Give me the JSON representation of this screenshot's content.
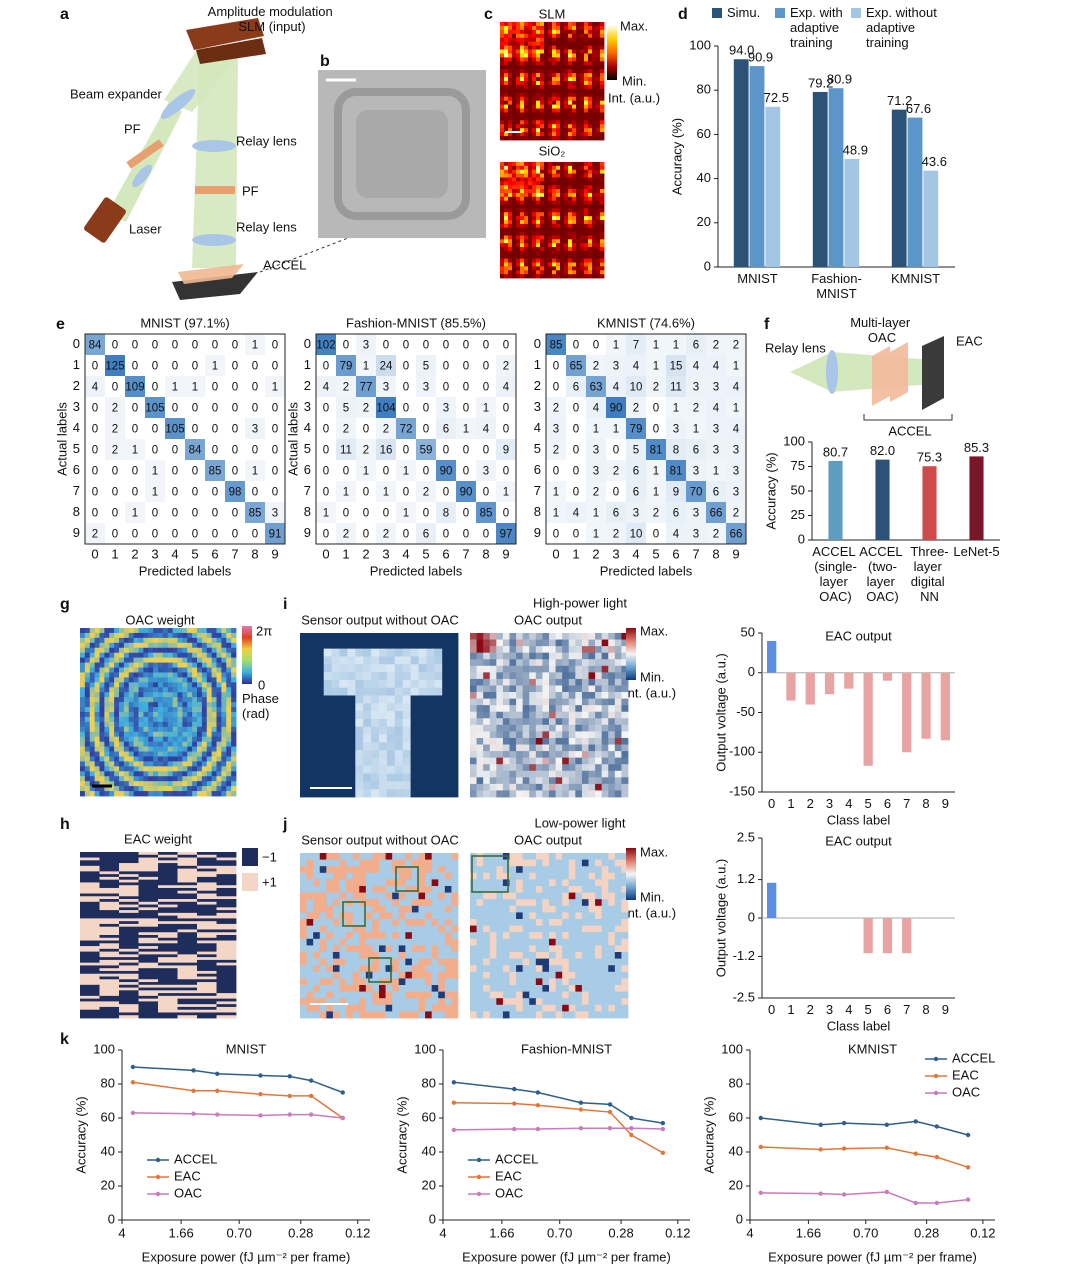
{
  "panel_labels": [
    "a",
    "b",
    "c",
    "d",
    "e",
    "f",
    "g",
    "h",
    "i",
    "j",
    "k"
  ],
  "panel_a": {
    "slm": "Amplitude modulation SLM (input)",
    "beam_expander": "Beam expander",
    "pf_1": "PF",
    "relay_lens_1": "Relay lens",
    "pf_2": "PF",
    "laser": "Laser",
    "relay_lens_2": "Relay lens",
    "accel": "ACCEL"
  },
  "panel_c": {
    "top": "SLM",
    "bottom": "SiO₂",
    "max": "Max.",
    "min": "Min.",
    "unit": "Int. (a.u.)"
  },
  "panel_f": {
    "relay_lens": "Relay lens",
    "oac": "Multi-layer OAC",
    "eac": "EAC",
    "accel": "ACCEL"
  },
  "panel_g": {
    "title": "OAC weight",
    "max": "2π",
    "min": "0",
    "unit": "Phase (rad)"
  },
  "panel_h": {
    "title": "EAC weight",
    "neg": "−1",
    "pos": "+1"
  },
  "panel_i": {
    "title": "High-power light",
    "sensor": "Sensor output without OAC",
    "oac": "OAC output",
    "max": "Max.",
    "min": "Min.",
    "unit": "Int. (a.u.)"
  },
  "panel_j": {
    "title": "Low-power light",
    "sensor": "Sensor output without OAC",
    "oac": "OAC output",
    "max": "Max.",
    "min": "Min.",
    "unit": "Int. (a.u.)"
  },
  "chart_data": [
    {
      "type": "bar",
      "categories": [
        "MNIST",
        "Fashion-MNIST",
        "KMNIST"
      ],
      "series": [
        {
          "name": "Simu.",
          "color": "#2c5377",
          "values": [
            94.0,
            79.2,
            71.2
          ],
          "value_labels": [
            "94.0",
            "79.2",
            "71.2"
          ]
        },
        {
          "name": "Exp. with adaptive training",
          "color": "#5b95c9",
          "values": [
            90.9,
            80.9,
            67.6
          ],
          "value_labels": [
            "90.9",
            "80.9",
            "67.6"
          ]
        },
        {
          "name": "Exp. without adaptive training",
          "color": "#a3c6e4",
          "values": [
            72.5,
            48.9,
            43.6
          ],
          "value_labels": [
            "72.5",
            "48.9",
            "43.6"
          ]
        }
      ],
      "ylabel": "Accuracy (%)",
      "ylim": [
        0,
        100
      ],
      "yticks": [
        0,
        20,
        40,
        60,
        80,
        100
      ],
      "legend": "top"
    },
    {
      "type": "confusion_matrix",
      "title": "MNIST (97.1%)",
      "color": "#3f7fc1",
      "matrix": [
        [
          84,
          0,
          0,
          0,
          0,
          0,
          0,
          0,
          1,
          0
        ],
        [
          0,
          125,
          0,
          0,
          0,
          0,
          1,
          0,
          0,
          0
        ],
        [
          4,
          0,
          109,
          0,
          1,
          1,
          0,
          0,
          0,
          1
        ],
        [
          0,
          2,
          0,
          105,
          0,
          0,
          0,
          0,
          0,
          0
        ],
        [
          0,
          2,
          0,
          0,
          105,
          0,
          0,
          0,
          3,
          0
        ],
        [
          0,
          2,
          1,
          0,
          0,
          84,
          0,
          0,
          0,
          0
        ],
        [
          0,
          0,
          0,
          1,
          0,
          0,
          85,
          0,
          1,
          0
        ],
        [
          0,
          0,
          0,
          1,
          0,
          0,
          0,
          98,
          0,
          0
        ],
        [
          0,
          0,
          1,
          0,
          0,
          0,
          0,
          0,
          85,
          3
        ],
        [
          2,
          0,
          0,
          0,
          0,
          0,
          0,
          0,
          0,
          91
        ]
      ],
      "xticks": [
        0,
        1,
        2,
        3,
        4,
        5,
        6,
        7,
        8,
        9
      ],
      "yticks": [
        0,
        1,
        2,
        3,
        4,
        5,
        6,
        7,
        8,
        9
      ],
      "xlabel": "Predicted labels",
      "ylabel": "Actual labels"
    },
    {
      "type": "confusion_matrix",
      "title": "Fashion-MNIST (85.5%)",
      "color": "#3f7fc1",
      "matrix": [
        [
          102,
          0,
          3,
          0,
          0,
          0,
          0,
          0,
          0,
          0
        ],
        [
          0,
          79,
          1,
          24,
          0,
          5,
          0,
          0,
          0,
          2
        ],
        [
          4,
          2,
          77,
          3,
          0,
          3,
          0,
          0,
          0,
          4
        ],
        [
          0,
          5,
          2,
          104,
          0,
          0,
          3,
          0,
          1,
          0
        ],
        [
          0,
          2,
          0,
          2,
          72,
          0,
          6,
          1,
          4,
          0
        ],
        [
          0,
          11,
          2,
          16,
          0,
          59,
          0,
          0,
          0,
          9
        ],
        [
          0,
          0,
          1,
          0,
          1,
          0,
          90,
          0,
          3,
          0
        ],
        [
          0,
          1,
          0,
          1,
          0,
          2,
          0,
          90,
          0,
          1
        ],
        [
          1,
          0,
          0,
          0,
          1,
          0,
          8,
          0,
          85,
          0
        ],
        [
          0,
          2,
          0,
          2,
          0,
          6,
          0,
          0,
          0,
          97
        ]
      ],
      "xticks": [
        0,
        1,
        2,
        3,
        4,
        5,
        6,
        7,
        8,
        9
      ],
      "yticks": [
        0,
        1,
        2,
        3,
        4,
        5,
        6,
        7,
        8,
        9
      ],
      "xlabel": "Predicted labels",
      "ylabel": "Actual labels"
    },
    {
      "type": "confusion_matrix",
      "title": "KMNIST (74.6%)",
      "color": "#3f7fc1",
      "matrix": [
        [
          85,
          0,
          0,
          1,
          7,
          1,
          1,
          6,
          2,
          2
        ],
        [
          0,
          65,
          2,
          3,
          4,
          1,
          15,
          4,
          4,
          1
        ],
        [
          0,
          6,
          63,
          4,
          10,
          2,
          11,
          3,
          3,
          4
        ],
        [
          2,
          0,
          4,
          90,
          2,
          0,
          1,
          2,
          4,
          1
        ],
        [
          3,
          0,
          1,
          1,
          79,
          0,
          3,
          1,
          3,
          4
        ],
        [
          2,
          0,
          3,
          0,
          5,
          81,
          8,
          6,
          3,
          3
        ],
        [
          0,
          0,
          3,
          2,
          6,
          1,
          81,
          3,
          1,
          3
        ],
        [
          1,
          0,
          2,
          0,
          6,
          1,
          9,
          70,
          6,
          3
        ],
        [
          1,
          4,
          1,
          6,
          3,
          2,
          6,
          3,
          66,
          2
        ],
        [
          0,
          0,
          1,
          2,
          10,
          0,
          4,
          3,
          2,
          66
        ]
      ],
      "xticks": [
        0,
        1,
        2,
        3,
        4,
        5,
        6,
        7,
        8,
        9
      ],
      "yticks": [
        0,
        1,
        2,
        3,
        4,
        5,
        6,
        7,
        8,
        9
      ],
      "xlabel": "Predicted labels"
    },
    {
      "type": "bar",
      "categories": [
        "ACCEL (single-layer OAC)",
        "ACCEL (two-layer OAC)",
        "Three-layer digital NN",
        "LeNet-5"
      ],
      "values": [
        80.7,
        82.0,
        75.3,
        85.3
      ],
      "value_labels": [
        "80.7",
        "82.0",
        "75.3",
        "85.3"
      ],
      "colors": [
        "#5e9cc0",
        "#2c5377",
        "#cf4b4b",
        "#7a1629"
      ],
      "ylabel": "Accuracy (%)",
      "ylim": [
        0,
        100
      ],
      "yticks": [
        0,
        25,
        50,
        75,
        100
      ]
    },
    {
      "type": "bar",
      "title": "EAC output",
      "categories": [
        "0",
        "1",
        "2",
        "3",
        "4",
        "5",
        "6",
        "7",
        "8",
        "9"
      ],
      "values": [
        40,
        -35,
        -40,
        -27,
        -20,
        -117,
        -10,
        -100,
        -83,
        -85
      ],
      "colors": [
        "#5b8fe3",
        "#e8a3a3",
        "#e8a3a3",
        "#e8a3a3",
        "#e8a3a3",
        "#e8a3a3",
        "#e8a3a3",
        "#e8a3a3",
        "#e8a3a3",
        "#e8a3a3"
      ],
      "xlabel": "Class label",
      "ylabel": "Output voltage (a.u.)",
      "ylim": [
        -150,
        50
      ],
      "yticks": [
        -150,
        -100,
        -50,
        0,
        50
      ]
    },
    {
      "type": "bar",
      "title": "EAC output",
      "categories": [
        "0",
        "1",
        "2",
        "3",
        "4",
        "5",
        "6",
        "7",
        "8",
        "9"
      ],
      "values": [
        1.1,
        0,
        0,
        0,
        0,
        -1.1,
        -1.1,
        -1.1,
        0,
        0
      ],
      "colors": [
        "#5b8fe3",
        "#e8a3a3",
        "#e8a3a3",
        "#e8a3a3",
        "#e8a3a3",
        "#e8a3a3",
        "#e8a3a3",
        "#e8a3a3",
        "#e8a3a3",
        "#e8a3a3"
      ],
      "xlabel": "Class label",
      "ylabel": "Output voltage (a.u.)",
      "ylim": [
        -2.5,
        2.5
      ],
      "yticks": [
        -2.5,
        -1.2,
        0,
        1.2,
        2.5
      ]
    },
    {
      "type": "line",
      "title": "MNIST",
      "x": [
        3.4,
        1.38,
        0.97,
        0.51,
        0.33,
        0.24,
        0.15
      ],
      "xlog": true,
      "series": [
        {
          "name": "ACCEL",
          "color": "#2e5f8a",
          "values": [
            90,
            88,
            86,
            85,
            84.5,
            82,
            75
          ]
        },
        {
          "name": "EAC",
          "color": "#e0773a",
          "values": [
            81,
            76,
            76,
            74,
            73,
            73,
            60
          ]
        },
        {
          "name": "OAC",
          "color": "#c97bbd",
          "values": [
            63,
            62.5,
            62,
            61.5,
            62,
            62,
            60
          ]
        }
      ],
      "xlabel": "Exposure power (fJ µm⁻² per frame)",
      "ylabel": "Accuracy (%)",
      "xlim": [
        4,
        0.1
      ],
      "xticks": [
        4,
        1.66,
        {
          "value": 0.7,
          "label": "0.70"
        },
        0.28,
        0.12
      ],
      "ylim": [
        0,
        100
      ],
      "yticks": [
        0,
        20,
        40,
        60,
        80,
        100
      ],
      "legend": "lower left"
    },
    {
      "type": "line",
      "title": "Fashion-MNIST",
      "x": [
        3.4,
        1.38,
        0.97,
        0.51,
        0.33,
        0.24,
        0.15
      ],
      "xlog": true,
      "series": [
        {
          "name": "ACCEL",
          "color": "#2e5f8a",
          "values": [
            81,
            77,
            75,
            69,
            68,
            60,
            57
          ]
        },
        {
          "name": "EAC",
          "color": "#e0773a",
          "values": [
            69,
            68.5,
            67.5,
            65,
            63.5,
            50,
            39.5
          ]
        },
        {
          "name": "OAC",
          "color": "#c97bbd",
          "values": [
            53,
            53.5,
            53.5,
            54,
            54,
            54,
            53.5
          ]
        }
      ],
      "xlabel": "Exposure power (fJ µm⁻² per frame)",
      "ylabel": "Accuracy (%)",
      "xlim": [
        4,
        0.1
      ],
      "xticks": [
        4,
        1.66,
        {
          "value": 0.7,
          "label": "0.70"
        },
        0.28,
        0.12
      ],
      "ylim": [
        0,
        100
      ],
      "yticks": [
        0,
        20,
        40,
        60,
        80,
        100
      ],
      "legend": "lower left"
    },
    {
      "type": "line",
      "title": "KMNIST",
      "x": [
        3.4,
        1.38,
        0.97,
        0.51,
        0.33,
        0.24,
        0.15
      ],
      "xlog": true,
      "series": [
        {
          "name": "ACCEL",
          "color": "#2e5f8a",
          "values": [
            60,
            56,
            57,
            56,
            58,
            55,
            50
          ]
        },
        {
          "name": "EAC",
          "color": "#e0773a",
          "values": [
            43,
            41.5,
            42,
            42.5,
            39,
            37,
            31
          ]
        },
        {
          "name": "OAC",
          "color": "#c97bbd",
          "values": [
            16,
            15.5,
            15,
            16.5,
            10,
            10,
            12
          ]
        }
      ],
      "xlabel": "Exposure power (fJ µm⁻² per frame)",
      "ylabel": "Accuracy (%)",
      "xlim": [
        4,
        0.1
      ],
      "xticks": [
        4,
        1.66,
        {
          "value": 0.7,
          "label": "0.70"
        },
        0.28,
        0.12
      ],
      "ylim": [
        0,
        100
      ],
      "yticks": [
        0,
        20,
        40,
        60,
        80,
        100
      ],
      "legend": "upper right"
    }
  ]
}
